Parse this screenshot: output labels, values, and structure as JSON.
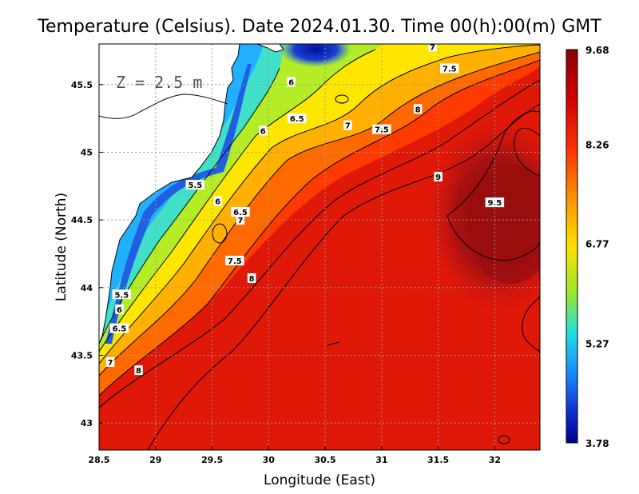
{
  "title": "Temperature (Celsius). Date 2024.01.30. Time 00(h):00(m) GMT",
  "depth_label": "Z = 2.5 m",
  "xlabel": "Longitude (East)",
  "ylabel": "Latitude (North)",
  "x_ticks": [
    "28.5",
    "29",
    "29.5",
    "30",
    "30.5",
    "31",
    "31.5",
    "32"
  ],
  "y_ticks": [
    "45.5",
    "45",
    "44.5",
    "44",
    "43.5",
    "43"
  ],
  "colorbar": {
    "labels": [
      "9.68",
      "8.26",
      "6.77",
      "5.27",
      "3.78"
    ],
    "min": 3.78,
    "max": 9.68
  },
  "contour_labels": [
    {
      "text": "7",
      "lon": 31.45,
      "lat": 45.78
    },
    {
      "text": "7.5",
      "lon": 31.6,
      "lat": 45.62
    },
    {
      "text": "6",
      "lon": 30.2,
      "lat": 45.52
    },
    {
      "text": "6.5",
      "lon": 30.25,
      "lat": 45.25
    },
    {
      "text": "7",
      "lon": 30.7,
      "lat": 45.2
    },
    {
      "text": "7.5",
      "lon": 31.0,
      "lat": 45.17
    },
    {
      "text": "8",
      "lon": 31.32,
      "lat": 45.32
    },
    {
      "text": "6",
      "lon": 29.95,
      "lat": 45.16
    },
    {
      "text": "9",
      "lon": 31.5,
      "lat": 44.82
    },
    {
      "text": "9.5",
      "lon": 32.0,
      "lat": 44.63
    },
    {
      "text": "5.5",
      "lon": 29.35,
      "lat": 44.76
    },
    {
      "text": "6",
      "lon": 29.55,
      "lat": 44.64
    },
    {
      "text": "6.5",
      "lon": 29.75,
      "lat": 44.56
    },
    {
      "text": "7",
      "lon": 29.75,
      "lat": 44.5
    },
    {
      "text": "7.5",
      "lon": 29.7,
      "lat": 44.2
    },
    {
      "text": "8",
      "lon": 29.85,
      "lat": 44.07
    },
    {
      "text": "5.5",
      "lon": 28.7,
      "lat": 43.95
    },
    {
      "text": "6",
      "lon": 28.68,
      "lat": 43.84
    },
    {
      "text": "6.5",
      "lon": 28.68,
      "lat": 43.7
    },
    {
      "text": "7",
      "lon": 28.6,
      "lat": 43.45
    },
    {
      "text": "8",
      "lon": 28.85,
      "lat": 43.39
    }
  ]
}
